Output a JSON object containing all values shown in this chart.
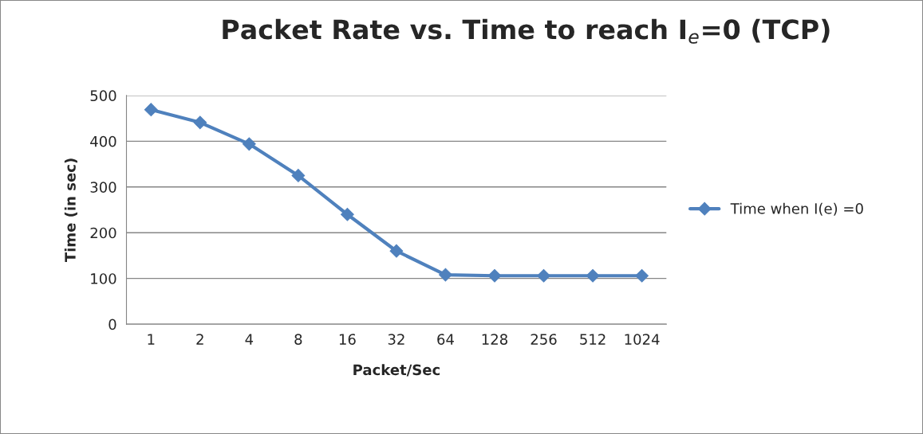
{
  "chart_data": {
    "type": "line",
    "title": "Packet Rate vs. Time to reach I$_{e}$=0 (TCP)",
    "xlabel": "Packet/Sec",
    "ylabel": "Time (in sec)",
    "categories": [
      "1",
      "2",
      "4",
      "8",
      "16",
      "32",
      "64",
      "128",
      "256",
      "512",
      "1024"
    ],
    "series": [
      {
        "name": "Time when I(e) =0",
        "color": "#4f81bd",
        "values": [
          469,
          441,
          394,
          325,
          240,
          160,
          108,
          106,
          106,
          106,
          106
        ]
      }
    ],
    "ylim": [
      0,
      500
    ],
    "yticks": [
      0,
      100,
      200,
      300,
      400,
      500
    ],
    "grid": "y",
    "legend": "right",
    "marker": "diamond"
  }
}
